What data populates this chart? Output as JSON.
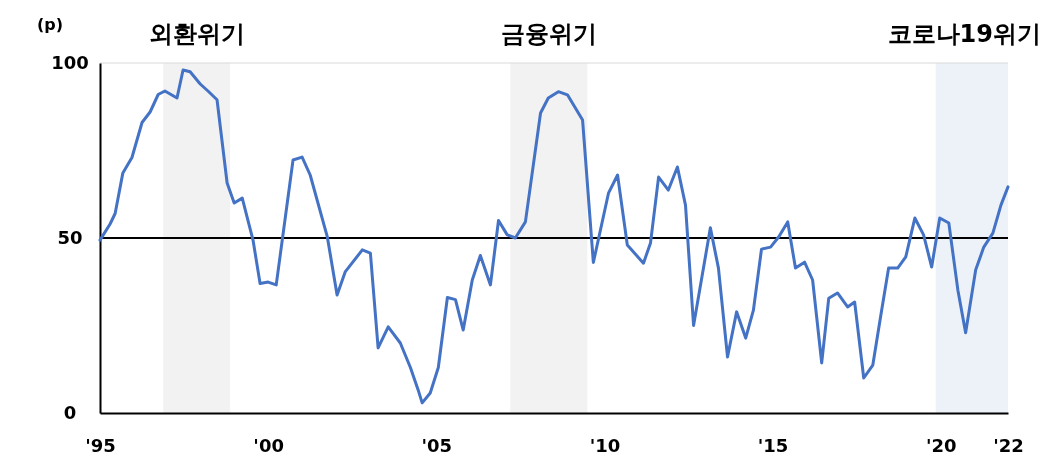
{
  "chart_data": {
    "type": "line",
    "ylabel": "(p)",
    "x": [
      1995.0,
      1995.3,
      1995.45,
      1995.68,
      1995.95,
      1996.25,
      1996.49,
      1996.73,
      1996.93,
      1997.29,
      1997.47,
      1997.68,
      1997.98,
      1998.21,
      1998.48,
      1998.78,
      1998.99,
      1999.23,
      1999.55,
      1999.76,
      2000.0,
      2000.24,
      2000.74,
      2001.01,
      2001.25,
      2001.76,
      2002.05,
      2002.29,
      2002.8,
      2003.04,
      2003.27,
      2003.57,
      2003.93,
      2004.23,
      2004.46,
      2004.58,
      2004.82,
      2005.06,
      2005.33,
      2005.57,
      2005.8,
      2006.07,
      2006.31,
      2006.61,
      2006.85,
      2007.11,
      2007.35,
      2007.65,
      2008.1,
      2008.33,
      2008.63,
      2008.9,
      2009.35,
      2009.67,
      2010.12,
      2010.39,
      2010.68,
      2011.16,
      2011.37,
      2011.61,
      2011.9,
      2012.17,
      2012.41,
      2012.65,
      2013.15,
      2013.39,
      2013.66,
      2013.93,
      2014.2,
      2014.43,
      2014.67,
      2014.94,
      2015.18,
      2015.45,
      2015.68,
      2015.95,
      2016.19,
      2016.46,
      2016.67,
      2016.93,
      2017.23,
      2017.44,
      2017.71,
      2017.98,
      2018.21,
      2018.45,
      2018.72,
      2018.96,
      2019.23,
      2019.49,
      2019.73,
      2019.97,
      2020.24,
      2020.51,
      2020.74,
      2021.04,
      2021.28,
      2021.55,
      2021.79,
      2022.0
    ],
    "series": [
      {
        "color": "#4472c4",
        "values": [
          49.4,
          54,
          57,
          68.6,
          73,
          83,
          86,
          91,
          92,
          90,
          98,
          97.5,
          94,
          92,
          89.5,
          65.7,
          60,
          61.4,
          49.4,
          37,
          37.4,
          36.6,
          72.3,
          73.1,
          68,
          50.3,
          33.7,
          40.3,
          46.6,
          45.7,
          18.6,
          24.6,
          20,
          13,
          6.6,
          2.9,
          5.7,
          13,
          33,
          32.4,
          23.7,
          38,
          45,
          36.6,
          55,
          50.9,
          50,
          54.6,
          85.7,
          90,
          91.8,
          90.9,
          83.7,
          43,
          62.8,
          68,
          48,
          42.8,
          48.6,
          67.4,
          63.7,
          70.3,
          59.4,
          25,
          52.9,
          41.4,
          16,
          28.9,
          21.4,
          29.4,
          46.8,
          47.4,
          50.3,
          54.6,
          41.4,
          43.1,
          38,
          14.3,
          32.8,
          34.3,
          30.3,
          31.7,
          10,
          13.7,
          27.4,
          41.4,
          41.4,
          44.6,
          55.7,
          50.9,
          41.7,
          55.7,
          54.3,
          35.1,
          22.9,
          40.9,
          47.4,
          51.4,
          59.4,
          64.6
        ]
      }
    ],
    "xlim": [
      1995,
      2022
    ],
    "xticks": [
      {
        "value": 1995,
        "label": "'95"
      },
      {
        "value": 2000,
        "label": "'00"
      },
      {
        "value": 2005,
        "label": "'05"
      },
      {
        "value": 2010,
        "label": "'10"
      },
      {
        "value": 2015,
        "label": "'15"
      },
      {
        "value": 2020,
        "label": "'20"
      },
      {
        "value": 2022,
        "label": "'22"
      }
    ],
    "ylim": [
      0,
      100
    ],
    "yticks": [
      0,
      50,
      100
    ],
    "ref_lines": [
      {
        "axis": "y",
        "value": 50,
        "color": "#000000"
      }
    ],
    "bands": [
      {
        "axis": "x",
        "from": 1996.88,
        "to": 1998.87,
        "label": "외환위기",
        "color": "#f2f2f2"
      },
      {
        "axis": "x",
        "from": 2007.2,
        "to": 2009.49,
        "label": "금융위기",
        "color": "#f2f2f2"
      },
      {
        "axis": "x",
        "from": 2019.85,
        "to": 2022,
        "label": "코로나19위기",
        "color": "#edf2f9"
      }
    ],
    "grid": false
  }
}
